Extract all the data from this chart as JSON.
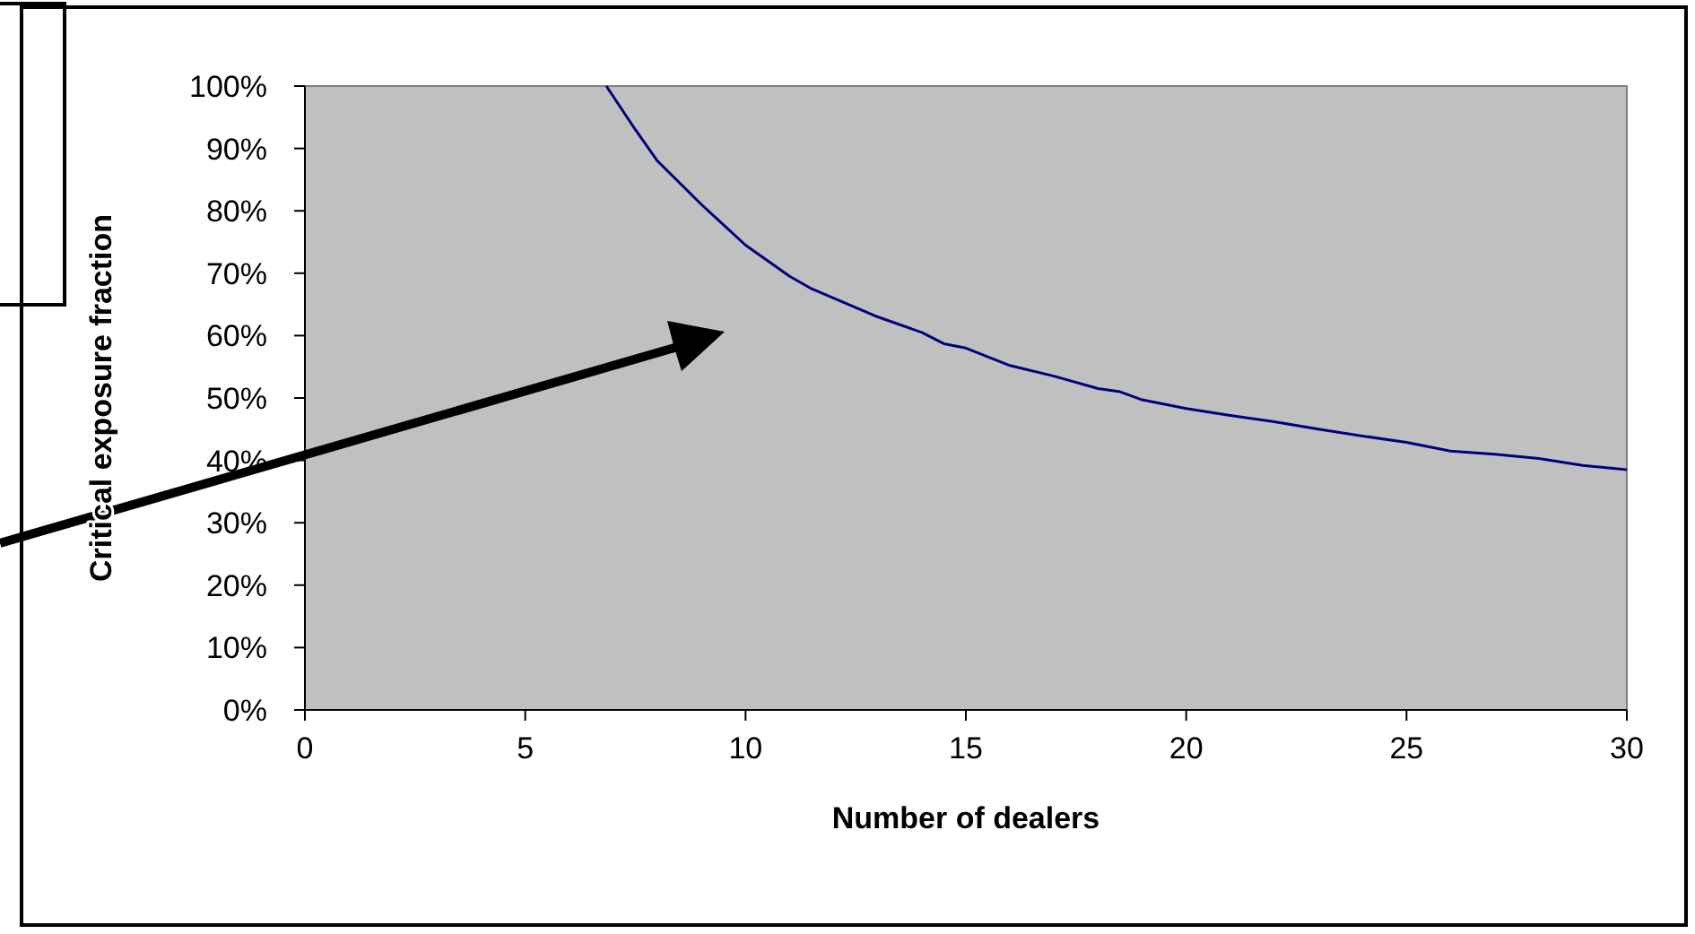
{
  "chart_data": {
    "type": "line",
    "xlabel": "Number of dealers",
    "ylabel": "Critical exposure fraction",
    "x": [
      6.84,
      7.5,
      8,
      9,
      10,
      11,
      11.5,
      12,
      12.5,
      13,
      14,
      14.5,
      15,
      16,
      17,
      18,
      18.5,
      19,
      20,
      21,
      22,
      23,
      24,
      25,
      26,
      27,
      28,
      29,
      30
    ],
    "series": [
      {
        "color": "#000080",
        "values": [
          100,
          93,
          88,
          81,
          74.5,
          69.5,
          67.5,
          66,
          64.5,
          63,
          60.5,
          58.7,
          58,
          55.2,
          53.5,
          51.5,
          51,
          49.7,
          48.3,
          47.2,
          46.2,
          45,
          43.9,
          42.9,
          41.5,
          41,
          40.3,
          39.2,
          38.5
        ]
      }
    ],
    "xlim": [
      0,
      30
    ],
    "xticks": [
      0,
      5,
      10,
      15,
      20,
      25,
      30
    ],
    "ylim": [
      0,
      100
    ],
    "yticks": [
      {
        "value": 0,
        "label": "0%"
      },
      {
        "value": 10,
        "label": "10%"
      },
      {
        "value": 20,
        "label": "20%"
      },
      {
        "value": 30,
        "label": "30%"
      },
      {
        "value": 40,
        "label": "40%"
      },
      {
        "value": 50,
        "label": "50%"
      },
      {
        "value": 60,
        "label": "60%"
      },
      {
        "value": 70,
        "label": "70%"
      },
      {
        "value": 80,
        "label": "80%"
      },
      {
        "value": 90,
        "label": "90%"
      },
      {
        "value": 100,
        "label": "100%"
      }
    ],
    "grid": false,
    "marker": "none",
    "line_style": "solid"
  }
}
